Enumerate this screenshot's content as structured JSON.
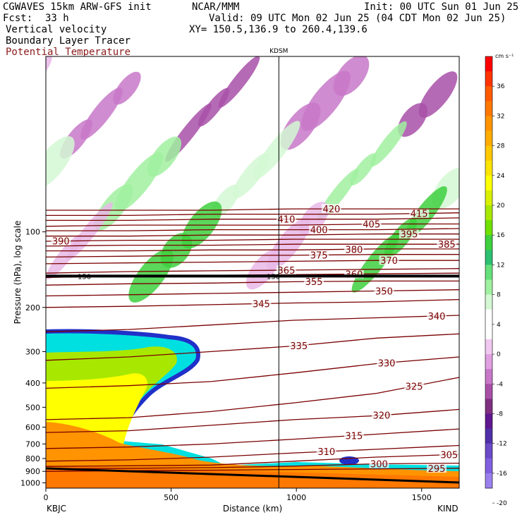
{
  "header": {
    "model": "CGWAVES 15km ARW-GFS init",
    "fcst_label": "Fcst:",
    "fcst_value": "33 h",
    "field1": "Vertical velocity",
    "field2": "Boundary Layer Tracer",
    "field3": "Potential Temperature",
    "org": "NCAR/MMM",
    "init": "Init: 00 UTC Sun 01 Jun 25",
    "valid": "Valid: 09 UTC Mon 02 Jun 25 (04 CDT Mon 02 Jun 25)",
    "xy": "XY= 150.5,136.9 to 260.4,139.6",
    "marker": "KDSM",
    "left_station": "KBJC",
    "right_station": "KIND",
    "tropopause_labels": [
      "150",
      "150"
    ]
  },
  "colors": {
    "theta": "#7a0000",
    "tropopause": "#000000",
    "terrain": "#000000"
  },
  "chart_data": {
    "type": "heatmap",
    "title": "",
    "xlabel": "Distance (km)",
    "ylabel": "Pressure (hPa), log scale",
    "xlim": [
      0,
      1650
    ],
    "ylim": [
      1050,
      20
    ],
    "yscale": "log",
    "x_ticks": [
      0,
      500,
      1000,
      1500
    ],
    "y_ticks": [
      100,
      200,
      300,
      400,
      500,
      600,
      700,
      800,
      900,
      1000
    ],
    "marker_x": 930,
    "colorbar": {
      "unit": "cm s⁻¹",
      "tick_labels": [
        "36",
        "32",
        "28",
        "24",
        "20",
        "16",
        "12",
        "8",
        "4",
        "0",
        "-4",
        "-8",
        "-12",
        "-16",
        "-20"
      ],
      "colors": [
        "#ff0000",
        "#ff3300",
        "#ff5a00",
        "#ff7800",
        "#ff9400",
        "#ffac00",
        "#ffc800",
        "#ffe400",
        "#ffff00",
        "#d8f000",
        "#a8e800",
        "#70e000",
        "#3ed03e",
        "#2cc070",
        "#66e07a",
        "#a0f0a0",
        "#d4f8d4",
        "#ffffff",
        "#ffffff",
        "#f0c8f0",
        "#e0a0e0",
        "#c878c8",
        "#a850a8",
        "#803080",
        "#601890",
        "#5030a8",
        "#6a4cc8",
        "#8060e0",
        "#9a80ee"
      ]
    },
    "tropopause_p": 150,
    "theta_contours": [
      {
        "theta": 295,
        "p": [
          900,
          895,
          890,
          885,
          880,
          875
        ],
        "label_x": 1560
      },
      {
        "theta": 300,
        "p": [
          880,
          875,
          870,
          858,
          840,
          835
        ],
        "label_x": 1330
      },
      {
        "theta": 305,
        "p": [
          860,
          855,
          850,
          820,
          790,
          770
        ],
        "label_x": 1610
      },
      {
        "theta": 310,
        "p": [
          820,
          810,
          790,
          760,
          735,
          710
        ],
        "label_x": 1120
      },
      {
        "theta": 315,
        "p": [
          730,
          720,
          700,
          670,
          640,
          610
        ],
        "label_x": 1230
      },
      {
        "theta": 320,
        "p": [
          630,
          620,
          590,
          560,
          540,
          510
        ],
        "label_x": 1340
      },
      {
        "theta": 325,
        "p": [
          560,
          550,
          520,
          480,
          440,
          380
        ],
        "label_x": 1470
      },
      {
        "theta": 330,
        "p": [
          420,
          410,
          395,
          365,
          335,
          315
        ],
        "label_x": 1360
      },
      {
        "theta": 335,
        "p": [
          325,
          315,
          300,
          285,
          265,
          255
        ],
        "label_x": 1010
      },
      {
        "theta": 340,
        "p": [
          250,
          245,
          235,
          225,
          220,
          215
        ],
        "label_x": 1560
      },
      {
        "theta": 345,
        "p": [
          200,
          198,
          195,
          192,
          190,
          186
        ],
        "label_x": 860
      },
      {
        "theta": 350,
        "p": [
          180,
          178,
          176,
          174,
          172,
          170
        ],
        "label_x": 1350
      },
      {
        "theta": 355,
        "p": [
          163,
          161,
          160,
          158,
          157,
          157
        ],
        "label_x": 1070
      },
      {
        "theta": 360,
        "p": [
          152,
          150,
          149,
          148,
          147,
          146
        ],
        "label_x": 1230
      },
      {
        "theta": 365,
        "p": [
          146,
          144,
          143,
          142,
          141,
          140
        ],
        "label_x": 960
      },
      {
        "theta": 370,
        "p": [
          134,
          133,
          132,
          131,
          130,
          130
        ],
        "label_x": 1370
      },
      {
        "theta": 375,
        "p": [
          126,
          125,
          124,
          124,
          123,
          123
        ],
        "label_x": 1090
      },
      {
        "theta": 380,
        "p": [
          119,
          119,
          118,
          118,
          117,
          117
        ],
        "label_x": 1230
      },
      {
        "theta": 385,
        "p": [
          114,
          113,
          113,
          112,
          112,
          112
        ],
        "label_x": 1600
      },
      {
        "theta": 390,
        "p": [
          109,
          108,
          108,
          107,
          107,
          107
        ],
        "label_x": 60
      },
      {
        "theta": 395,
        "p": [
          104,
          104,
          103,
          103,
          102,
          102
        ],
        "label_x": 1450
      },
      {
        "theta": 400,
        "p": [
          99,
          99,
          98,
          98,
          98,
          97
        ],
        "label_x": 1090
      },
      {
        "theta": 405,
        "p": [
          95,
          94,
          94,
          94,
          93,
          93
        ],
        "label_x": 1300
      },
      {
        "theta": 410,
        "p": [
          90,
          90,
          89,
          89,
          89,
          88
        ],
        "label_x": 960
      },
      {
        "theta": 415,
        "p": [
          86,
          86,
          85,
          85,
          85,
          84
        ],
        "label_x": 1490
      },
      {
        "theta": 420,
        "p": [
          82,
          82,
          82,
          81,
          81,
          81
        ],
        "label_x": 1140
      }
    ],
    "theta_x": [
      0,
      330,
      660,
      990,
      1320,
      1650
    ]
  }
}
